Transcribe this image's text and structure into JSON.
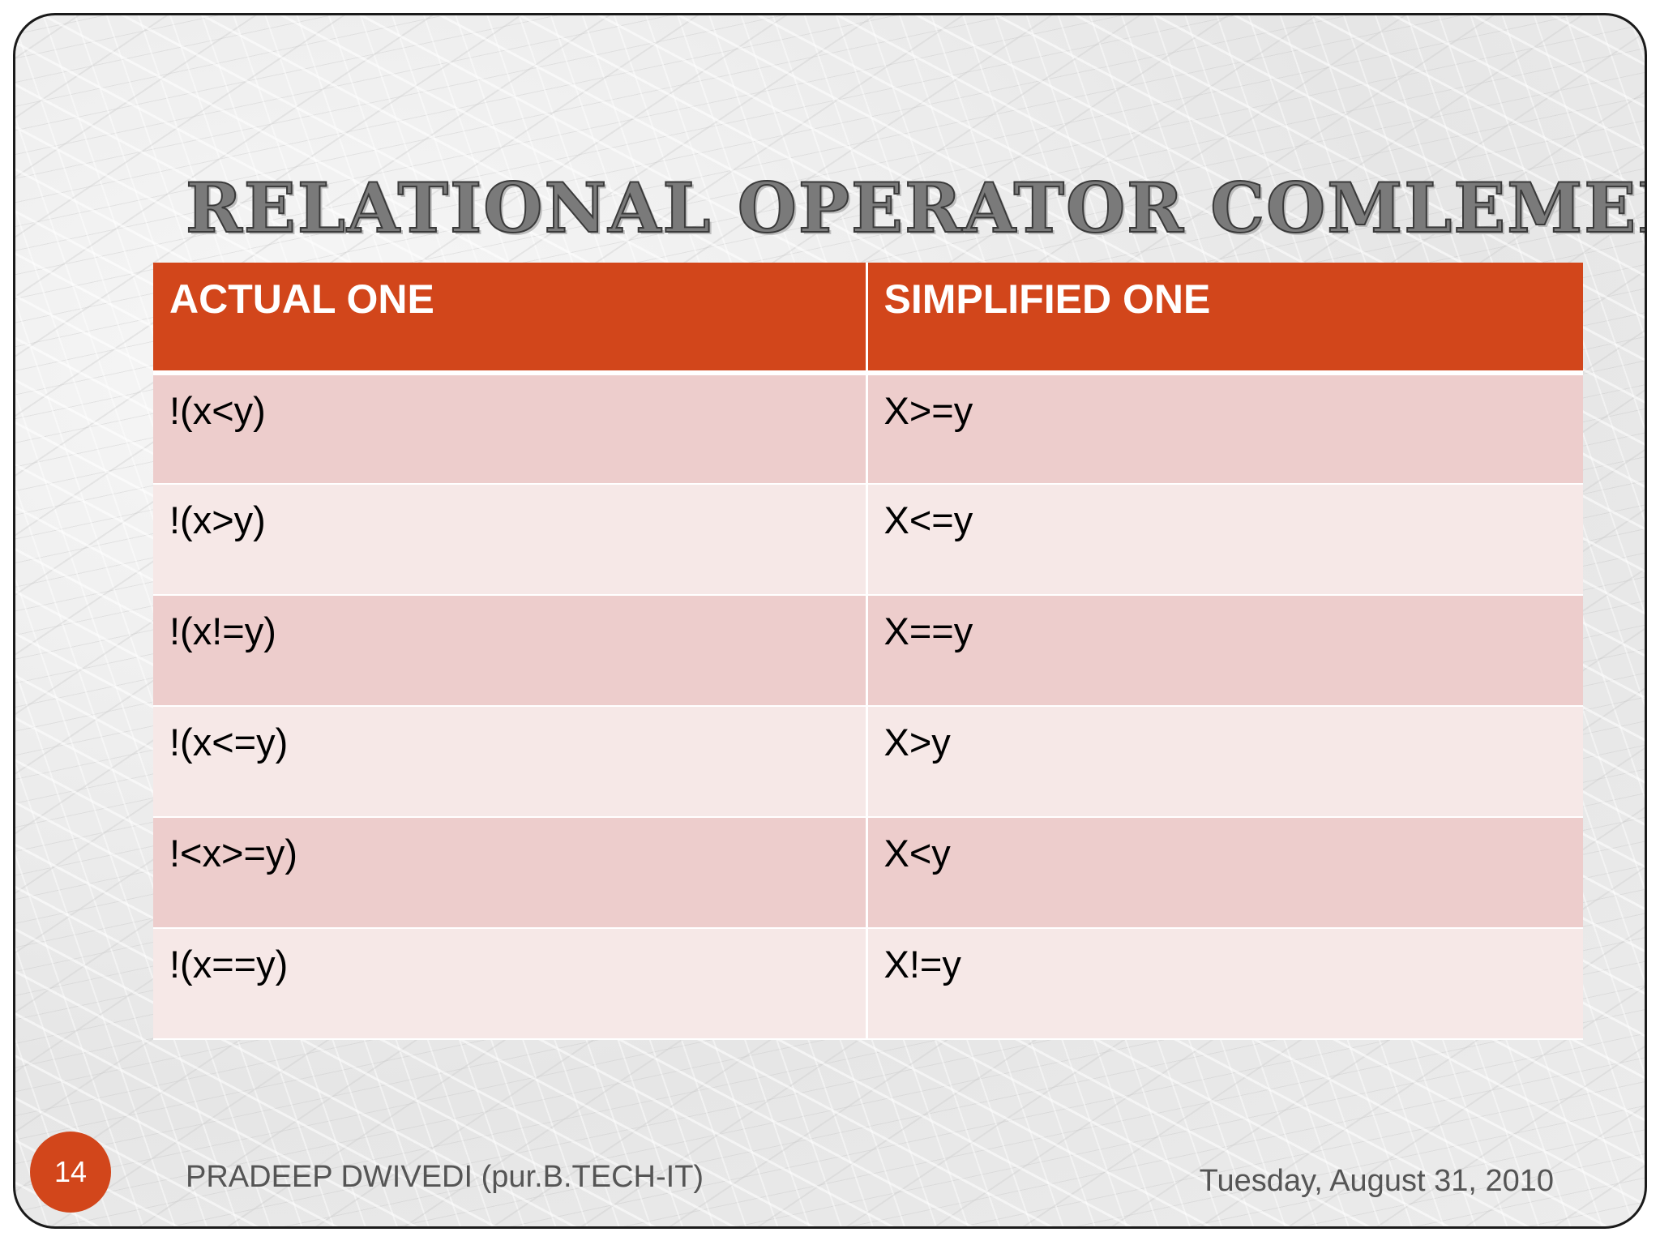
{
  "slide": {
    "title": "RELATIONAL OPERATOR COMLEMENT",
    "number": "14",
    "author": "PRADEEP DWIVEDI (pur.B.TECH-IT)",
    "date": "Tuesday, August 31, 2010"
  },
  "table": {
    "headers": [
      "ACTUAL ONE",
      "SIMPLIFIED ONE"
    ],
    "rows": [
      [
        "!(x<y)",
        "X>=y"
      ],
      [
        "!(x>y)",
        "X<=y"
      ],
      [
        "!(x!=y)",
        "X==y"
      ],
      [
        "!(x<=y)",
        "X>y"
      ],
      [
        "!<x>=y)",
        "X<y"
      ],
      [
        "!(x==y)",
        "X!=y"
      ]
    ]
  },
  "colors": {
    "accent": "#d2461b",
    "row_odd": "#edcdcc",
    "row_even": "#f6e8e7",
    "title_text": "#7a7a7a"
  }
}
